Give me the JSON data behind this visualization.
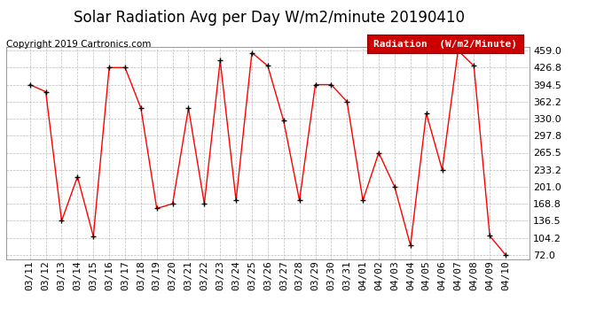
{
  "title": "Solar Radiation Avg per Day W/m2/minute 20190410",
  "copyright": "Copyright 2019 Cartronics.com",
  "legend_label": "Radiation  (W/m2/Minute)",
  "dates": [
    "03/11",
    "03/12",
    "03/13",
    "03/14",
    "03/15",
    "03/16",
    "03/17",
    "03/18",
    "03/19",
    "03/20",
    "03/21",
    "03/22",
    "03/23",
    "03/24",
    "03/25",
    "03/26",
    "03/27",
    "03/28",
    "03/29",
    "03/30",
    "03/31",
    "04/01",
    "04/02",
    "04/03",
    "04/04",
    "04/05",
    "04/06",
    "04/07",
    "04/08",
    "04/09",
    "04/10"
  ],
  "values": [
    394.5,
    381.0,
    136.5,
    220.0,
    107.0,
    426.8,
    426.8,
    350.0,
    160.0,
    168.8,
    350.0,
    168.8,
    440.0,
    175.0,
    455.0,
    430.0,
    326.0,
    175.0,
    394.5,
    394.5,
    362.2,
    175.0,
    265.5,
    201.0,
    90.0,
    340.0,
    233.2,
    459.0,
    430.0,
    108.0,
    72.0
  ],
  "line_color": "#ff0000",
  "marker_color": "#000000",
  "legend_bg": "#cc0000",
  "legend_text_color": "#ffffff",
  "bg_color": "#ffffff",
  "grid_color": "#bbbbbb",
  "ylim_min": 72.0,
  "ylim_max": 459.0,
  "ytick_pad": 3,
  "yticks": [
    72.0,
    104.2,
    136.5,
    168.8,
    201.0,
    233.2,
    265.5,
    297.8,
    330.0,
    362.2,
    394.5,
    426.8,
    459.0
  ],
  "title_fontsize": 12,
  "tick_fontsize": 8,
  "copyright_fontsize": 7.5,
  "legend_fontsize": 8
}
